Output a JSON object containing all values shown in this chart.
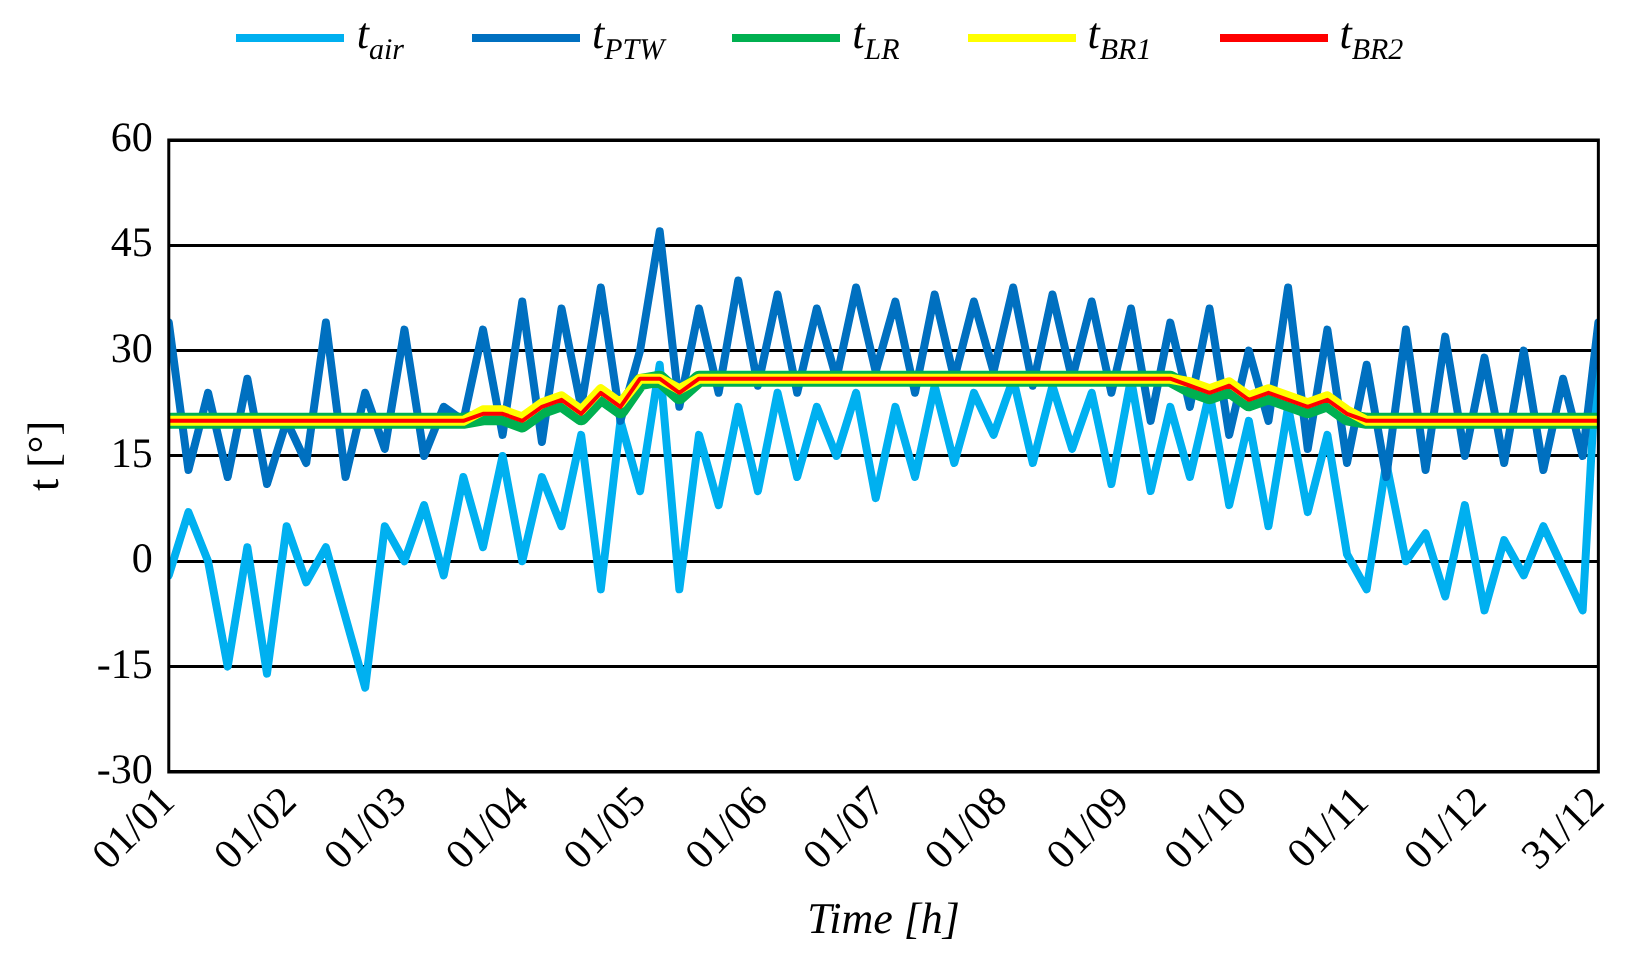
{
  "chart_data": {
    "type": "line",
    "xlabel": "Time [h]",
    "ylabel": "t [°]",
    "x": [
      "--01-01",
      "--01-06",
      "--01-11",
      "--01-16",
      "--01-21",
      "--01-26",
      "--01-31",
      "--02-05",
      "--02-10",
      "--02-15",
      "--02-20",
      "--02-25",
      "--03-02",
      "--03-07",
      "--03-12",
      "--03-17",
      "--03-22",
      "--03-27",
      "--04-01",
      "--04-06",
      "--04-11",
      "--04-16",
      "--04-21",
      "--04-26",
      "--05-01",
      "--05-06",
      "--05-11",
      "--05-16",
      "--05-21",
      "--05-26",
      "--05-31",
      "--06-05",
      "--06-10",
      "--06-15",
      "--06-20",
      "--06-25",
      "--06-30",
      "--07-05",
      "--07-10",
      "--07-15",
      "--07-20",
      "--07-25",
      "--07-30",
      "--08-04",
      "--08-09",
      "--08-14",
      "--08-19",
      "--08-24",
      "--08-29",
      "--09-03",
      "--09-08",
      "--09-13",
      "--09-18",
      "--09-23",
      "--09-28",
      "--10-03",
      "--10-08",
      "--10-13",
      "--10-18",
      "--10-23",
      "--10-28",
      "--11-02",
      "--11-07",
      "--11-12",
      "--11-17",
      "--11-22",
      "--11-27",
      "--12-02",
      "--12-07",
      "--12-12",
      "--12-17",
      "--12-22",
      "--12-27",
      "--12-31"
    ],
    "series": [
      {
        "name": "t$_{air}$",
        "color": "#00b0f0",
        "values": [
          -2,
          7,
          0,
          -15,
          2,
          -16,
          5,
          -3,
          2,
          -8,
          -18,
          5,
          0,
          8,
          -2,
          12,
          2,
          15,
          0,
          12,
          5,
          18,
          -4,
          20,
          10,
          28,
          -4,
          18,
          8,
          22,
          10,
          24,
          12,
          22,
          15,
          24,
          9,
          22,
          12,
          25,
          14,
          24,
          18,
          26,
          14,
          25,
          16,
          24,
          11,
          26,
          10,
          22,
          12,
          24,
          8,
          20,
          5,
          22,
          7,
          18,
          1,
          -4,
          14,
          0,
          4,
          -5,
          8,
          -7,
          3,
          -2,
          5,
          -1,
          -7,
          33
        ]
      },
      {
        "name": "t$_{PTW}$",
        "color": "#0070c0",
        "values": [
          34,
          13,
          24,
          12,
          26,
          11,
          20,
          14,
          34,
          12,
          24,
          16,
          33,
          15,
          22,
          20,
          33,
          18,
          37,
          17,
          36,
          22,
          39,
          20,
          30,
          47,
          22,
          36,
          24,
          40,
          25,
          38,
          24,
          36,
          26,
          39,
          27,
          37,
          24,
          38,
          26,
          37,
          27,
          39,
          25,
          38,
          26,
          37,
          24,
          36,
          20,
          34,
          22,
          36,
          18,
          30,
          20,
          39,
          16,
          33,
          14,
          28,
          12,
          33,
          13,
          32,
          15,
          29,
          14,
          30,
          13,
          26,
          15,
          34
        ]
      },
      {
        "name": "t$_{LR}$",
        "color": "#00b050",
        "values": [
          20,
          20,
          20,
          20,
          20,
          20,
          20,
          20,
          20,
          20,
          20,
          20,
          20,
          20,
          20,
          20,
          20.5,
          20.5,
          19.5,
          21.5,
          22.5,
          20.5,
          23.5,
          21.5,
          25.5,
          26,
          23.5,
          26,
          26,
          26,
          26,
          26,
          26,
          26,
          26,
          26,
          26,
          26,
          26,
          26,
          26,
          26,
          26,
          26,
          26,
          26,
          26,
          26,
          26,
          26,
          26,
          26,
          24.5,
          23.5,
          24.5,
          22.5,
          23.5,
          22.5,
          21.5,
          22.5,
          20.5,
          20,
          20,
          20,
          20,
          20,
          20,
          20,
          20,
          20,
          20,
          20,
          20,
          20
        ]
      },
      {
        "name": "t$_{BR1}$",
        "color": "#ffff00",
        "values": [
          20,
          20,
          20,
          20,
          20,
          20,
          20,
          20,
          20,
          20,
          20,
          20,
          20,
          20,
          20,
          20,
          21.5,
          21.5,
          20.5,
          22.5,
          23.5,
          21.5,
          24.5,
          22.5,
          26,
          26,
          24.5,
          26,
          26,
          26,
          26,
          26,
          26,
          26,
          26,
          26,
          26,
          26,
          26,
          26,
          26,
          26,
          26,
          26,
          26,
          26,
          26,
          26,
          26,
          26,
          26,
          26,
          25.5,
          24.5,
          25.5,
          23.5,
          24.5,
          23.5,
          22.5,
          23.5,
          21.5,
          20,
          20,
          20,
          20,
          20,
          20,
          20,
          20,
          20,
          20,
          20,
          20,
          20
        ]
      },
      {
        "name": "t$_{BR2}$",
        "color": "#ff0000",
        "values": [
          20,
          20,
          20,
          20,
          20,
          20,
          20,
          20,
          20,
          20,
          20,
          20,
          20,
          20,
          20,
          20,
          21,
          21,
          20,
          22,
          23,
          21,
          24,
          22,
          26,
          26,
          24,
          26,
          26,
          26,
          26,
          26,
          26,
          26,
          26,
          26,
          26,
          26,
          26,
          26,
          26,
          26,
          26,
          26,
          26,
          26,
          26,
          26,
          26,
          26,
          26,
          26,
          25,
          24,
          25,
          23,
          24,
          23,
          22,
          23,
          21,
          20,
          20,
          20,
          20,
          20,
          20,
          20,
          20,
          20,
          20,
          20,
          20,
          20
        ]
      }
    ],
    "xlim": [
      "--01-01",
      "--12-31"
    ],
    "xticks": [
      {
        "value": "--01-01",
        "label": "01/01"
      },
      {
        "value": "--02-01",
        "label": "01/02"
      },
      {
        "value": "--03-01",
        "label": "01/03"
      },
      {
        "value": "--04-01",
        "label": "01/04"
      },
      {
        "value": "--05-01",
        "label": "01/05"
      },
      {
        "value": "--06-01",
        "label": "01/06"
      },
      {
        "value": "--07-01",
        "label": "01/07"
      },
      {
        "value": "--08-01",
        "label": "01/08"
      },
      {
        "value": "--09-01",
        "label": "01/09"
      },
      {
        "value": "--10-01",
        "label": "01/10"
      },
      {
        "value": "--11-01",
        "label": "01/11"
      },
      {
        "value": "--12-01",
        "label": "01/12"
      },
      {
        "value": "--12-31",
        "label": "31/12"
      }
    ],
    "ylim": [
      -30,
      60
    ],
    "yticks": [
      -30,
      -15,
      0,
      15,
      30,
      45,
      60
    ],
    "grid": "y",
    "legend": "top",
    "marker": "none",
    "line_style": "solid"
  }
}
